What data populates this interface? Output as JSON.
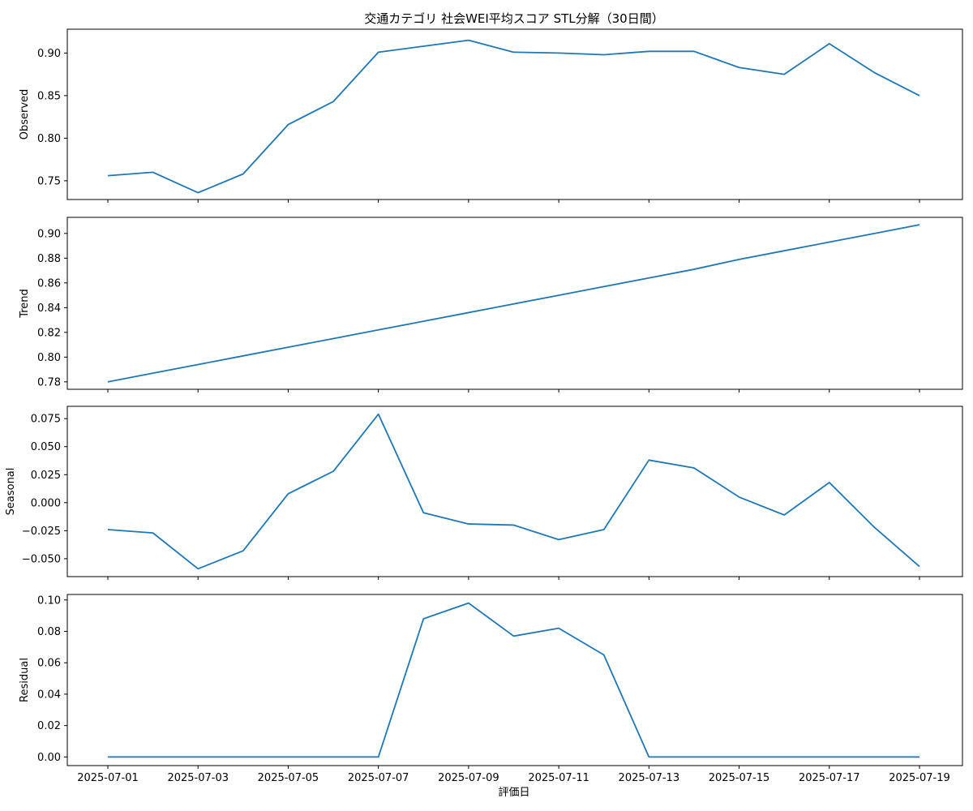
{
  "chart_data": {
    "type": "line",
    "title": "交通カテゴリ 社会WEI平均スコア STL分解（30日間）",
    "xlabel": "評価日",
    "x": [
      "2025-07-01",
      "2025-07-02",
      "2025-07-03",
      "2025-07-04",
      "2025-07-05",
      "2025-07-06",
      "2025-07-07",
      "2025-07-08",
      "2025-07-09",
      "2025-07-10",
      "2025-07-11",
      "2025-07-12",
      "2025-07-13",
      "2025-07-14",
      "2025-07-15",
      "2025-07-16",
      "2025-07-17",
      "2025-07-18",
      "2025-07-19"
    ],
    "x_tick_labels": [
      "2025-07-01",
      "2025-07-03",
      "2025-07-05",
      "2025-07-07",
      "2025-07-09",
      "2025-07-11",
      "2025-07-13",
      "2025-07-15",
      "2025-07-17",
      "2025-07-19"
    ],
    "line_color": "#1f77b4",
    "grid": false,
    "panels": [
      {
        "ylabel": "Observed",
        "ylim": [
          0.728,
          0.928
        ],
        "yticks": [
          0.75,
          0.8,
          0.85,
          0.9
        ],
        "ytick_labels": [
          "0.75",
          "0.80",
          "0.85",
          "0.90"
        ],
        "values": [
          0.756,
          0.76,
          0.736,
          0.758,
          0.816,
          0.843,
          0.901,
          0.908,
          0.915,
          0.901,
          0.9,
          0.898,
          0.902,
          0.902,
          0.883,
          0.875,
          0.911,
          0.877,
          0.85
        ]
      },
      {
        "ylabel": "Trend",
        "ylim": [
          0.774,
          0.913
        ],
        "yticks": [
          0.78,
          0.8,
          0.82,
          0.84,
          0.86,
          0.88,
          0.9
        ],
        "ytick_labels": [
          "0.78",
          "0.80",
          "0.82",
          "0.84",
          "0.86",
          "0.88",
          "0.90"
        ],
        "values": [
          0.78,
          0.787,
          0.794,
          0.801,
          0.808,
          0.815,
          0.822,
          0.829,
          0.836,
          0.843,
          0.85,
          0.857,
          0.864,
          0.871,
          0.879,
          0.886,
          0.893,
          0.9,
          0.907
        ]
      },
      {
        "ylabel": "Seasonal",
        "ylim": [
          -0.066,
          0.086
        ],
        "yticks": [
          -0.05,
          -0.025,
          0.0,
          0.025,
          0.05,
          0.075
        ],
        "ytick_labels": [
          "−0.050",
          "−0.025",
          "0.000",
          "0.025",
          "0.050",
          "0.075"
        ],
        "values": [
          -0.024,
          -0.027,
          -0.059,
          -0.043,
          0.008,
          0.028,
          0.079,
          -0.009,
          -0.019,
          -0.02,
          -0.033,
          -0.024,
          0.038,
          0.031,
          0.005,
          -0.011,
          0.018,
          -0.022,
          -0.057
        ]
      },
      {
        "ylabel": "Residual",
        "ylim": [
          -0.0055,
          0.1035
        ],
        "yticks": [
          0.0,
          0.02,
          0.04,
          0.06,
          0.08,
          0.1
        ],
        "ytick_labels": [
          "0.00",
          "0.02",
          "0.04",
          "0.06",
          "0.08",
          "0.10"
        ],
        "values": [
          0,
          0,
          0,
          0,
          0,
          0,
          0,
          0.088,
          0.098,
          0.077,
          0.082,
          0.065,
          0,
          0,
          0,
          0,
          0,
          0,
          0
        ]
      }
    ]
  }
}
